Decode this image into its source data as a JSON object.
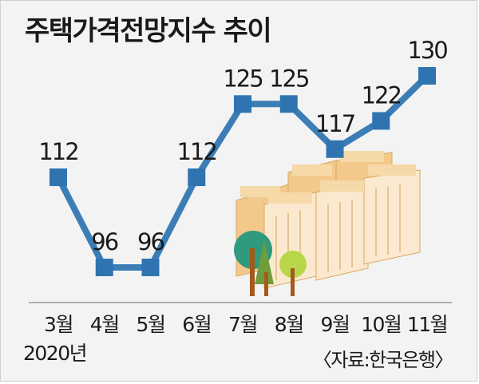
{
  "chart_data": {
    "type": "line",
    "title": "주택가격전망지수 추이",
    "categories": [
      "3월",
      "4월",
      "5월",
      "6월",
      "7월",
      "8월",
      "9월",
      "10월",
      "11월"
    ],
    "values": [
      112,
      96,
      96,
      112,
      125,
      125,
      117,
      122,
      130
    ],
    "year_label": "2020년",
    "source": "〈자료:한국은행〉",
    "colors": {
      "line": "#3d7db5",
      "marker": "#2f74b1",
      "background": "#f3f3f3"
    },
    "grid": false
  }
}
